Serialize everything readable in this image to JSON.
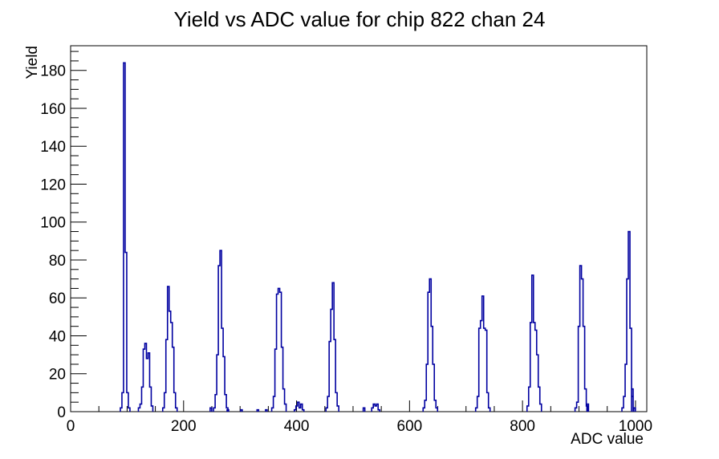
{
  "title": "Yield vs ADC value for chip 822 chan 24",
  "chart_data": {
    "type": "bar",
    "subtype": "root-histogram-outline",
    "title": "Yield vs ADC value for chip 822 chan 24",
    "xlabel": "ADC value",
    "ylabel": "Yield",
    "xlim": [
      0,
      1020
    ],
    "ylim": [
      0,
      193
    ],
    "grid": false,
    "legend": "none",
    "x_major_ticks": [
      0,
      200,
      400,
      600,
      800,
      1000
    ],
    "x_minor_step": 50,
    "y_major_ticks": [
      0,
      20,
      40,
      60,
      80,
      100,
      120,
      140,
      160,
      180
    ],
    "y_minor_step": 5,
    "line_color": "#0000a0",
    "axis_color": "#000000",
    "bin_width_adc": 2.84,
    "clusters": [
      {
        "start_adc": 88,
        "heights": [
          2,
          10,
          184,
          84,
          10,
          2
        ]
      },
      {
        "start_adc": 120,
        "heights": [
          2,
          4,
          13,
          33,
          36,
          28,
          31,
          13,
          3
        ]
      },
      {
        "start_adc": 163,
        "heights": [
          2,
          10,
          38,
          66,
          53,
          47,
          34,
          10,
          2
        ]
      },
      {
        "start_adc": 247,
        "heights": [
          2
        ]
      },
      {
        "start_adc": 253,
        "heights": [
          2,
          9,
          30,
          77,
          85,
          44,
          29,
          9,
          2
        ]
      },
      {
        "start_adc": 277,
        "heights": [
          1
        ]
      },
      {
        "start_adc": 301,
        "heights": [
          1
        ]
      },
      {
        "start_adc": 330,
        "heights": [
          1
        ]
      },
      {
        "start_adc": 345,
        "heights": [
          1
        ]
      },
      {
        "start_adc": 356,
        "heights": [
          2,
          8,
          33,
          62,
          65,
          63,
          34,
          12,
          4
        ]
      },
      {
        "start_adc": 396,
        "heights": [
          1,
          3,
          5,
          2,
          4,
          1
        ]
      },
      {
        "start_adc": 452,
        "heights": [
          2,
          8,
          37,
          54,
          68,
          38,
          10,
          3
        ]
      },
      {
        "start_adc": 518,
        "heights": [
          2
        ]
      },
      {
        "start_adc": 533,
        "heights": [
          2,
          4,
          3,
          4,
          1
        ]
      },
      {
        "start_adc": 624,
        "heights": [
          2,
          6,
          25,
          63,
          70,
          45,
          25,
          6,
          2
        ]
      },
      {
        "start_adc": 717,
        "heights": [
          2,
          8,
          44,
          48,
          61,
          44,
          43,
          10,
          2
        ]
      },
      {
        "start_adc": 808,
        "heights": [
          3,
          13,
          47,
          72,
          47,
          43,
          30,
          13,
          4
        ]
      },
      {
        "start_adc": 893,
        "heights": [
          2,
          5,
          45,
          77,
          70,
          45,
          12,
          3
        ]
      },
      {
        "start_adc": 914,
        "heights": [
          4
        ]
      },
      {
        "start_adc": 976,
        "heights": [
          2,
          8,
          25,
          70,
          95,
          44,
          8
        ]
      },
      {
        "start_adc": 993,
        "heights": [
          12
        ]
      },
      {
        "start_adc": 997,
        "heights": [
          2
        ]
      }
    ],
    "notable_peaks_adc_yield": [
      [
        95,
        184
      ],
      [
        131,
        36
      ],
      [
        172,
        66
      ],
      [
        264,
        85
      ],
      [
        367,
        65
      ],
      [
        404,
        5
      ],
      [
        464,
        68
      ],
      [
        537,
        4
      ],
      [
        636,
        70
      ],
      [
        728,
        61
      ],
      [
        818,
        72
      ],
      [
        901,
        77
      ],
      [
        988,
        95
      ]
    ]
  }
}
